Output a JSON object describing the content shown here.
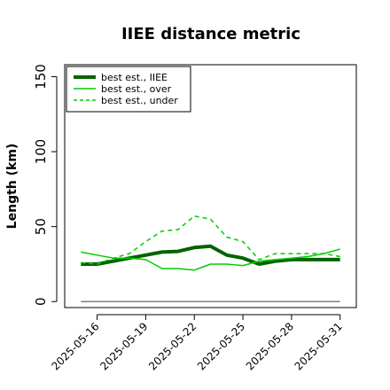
{
  "chart_data": {
    "type": "line",
    "title": "IIEE distance metric",
    "xlabel": "",
    "ylabel": "Length (km)",
    "x": [
      "2025-05-15",
      "2025-05-16",
      "2025-05-17",
      "2025-05-18",
      "2025-05-19",
      "2025-05-20",
      "2025-05-21",
      "2025-05-22",
      "2025-05-23",
      "2025-05-24",
      "2025-05-25",
      "2025-05-26",
      "2025-05-27",
      "2025-05-28",
      "2025-05-29",
      "2025-05-30",
      "2025-05-31"
    ],
    "xticks": [
      "2025-05-16",
      "2025-05-19",
      "2025-05-22",
      "2025-05-25",
      "2025-05-28",
      "2025-05-31"
    ],
    "yticks": [
      0,
      50,
      100,
      150
    ],
    "ylim": [
      -4,
      158
    ],
    "xlim": [
      "2025-05-14",
      "2025-05-32"
    ],
    "grid": false,
    "legend_position": "top-left",
    "series": [
      {
        "name": "best est., IIEE",
        "color": "#006400",
        "style": "solid",
        "width": 4,
        "values": [
          25,
          25,
          27,
          29,
          31,
          33,
          33.5,
          36,
          37,
          31,
          29,
          25,
          27,
          28,
          28,
          28,
          28
        ]
      },
      {
        "name": "best est., over",
        "color": "#00cc00",
        "style": "solid",
        "width": 1.5,
        "values": [
          33,
          31,
          29,
          29,
          28,
          22,
          22,
          21,
          25,
          25,
          24,
          27,
          28,
          29,
          30,
          32,
          35
        ]
      },
      {
        "name": "best est., under",
        "color": "#00cc00",
        "style": "dashed",
        "width": 1.5,
        "values": [
          26,
          25,
          29,
          32,
          40,
          47,
          48,
          57,
          55,
          43,
          40,
          28,
          32,
          32,
          32,
          32,
          30
        ]
      },
      {
        "name": "",
        "color": "#808080",
        "style": "solid",
        "width": 1.5,
        "values": [
          0,
          0,
          0,
          0,
          0,
          0,
          0,
          0,
          0,
          0,
          0,
          0,
          0,
          0,
          0,
          0,
          0
        ]
      }
    ]
  }
}
